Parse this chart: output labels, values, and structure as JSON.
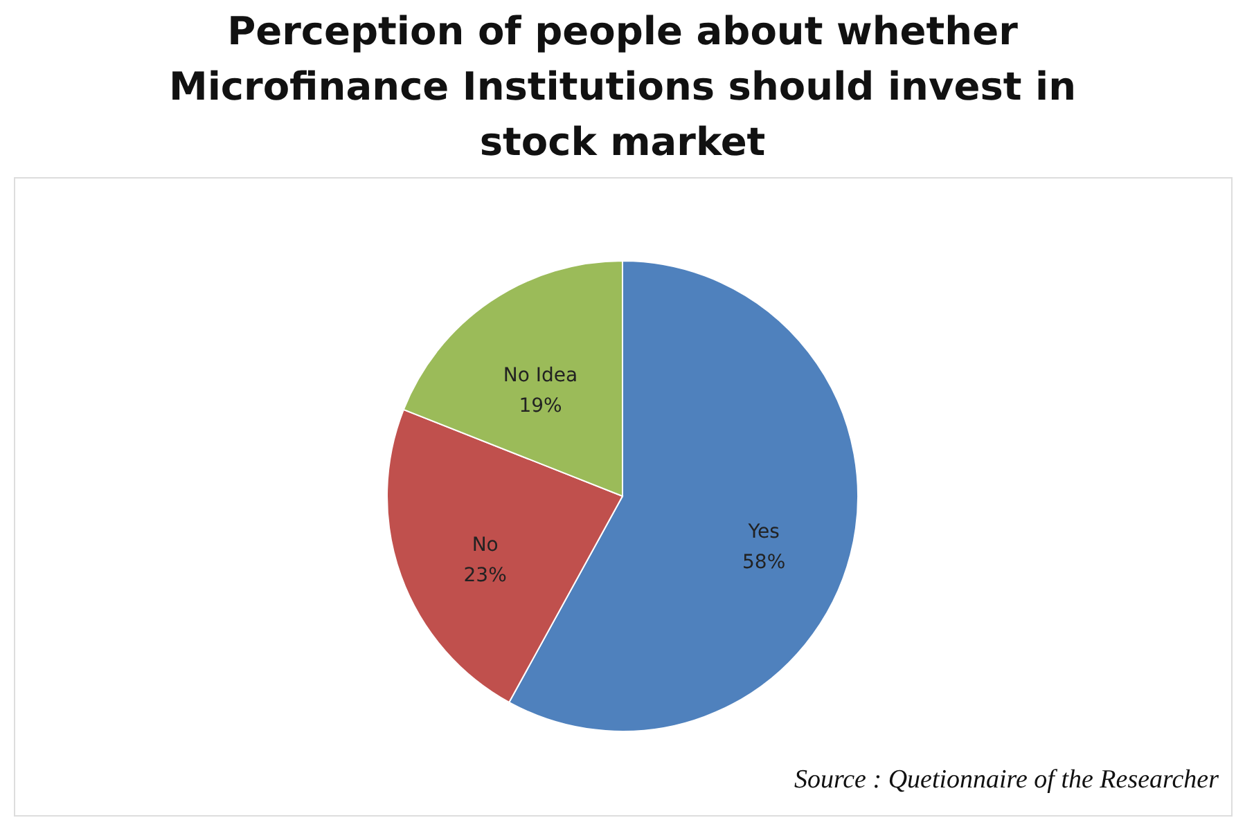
{
  "chart_data": {
    "type": "pie",
    "title": "Perception of people about whether Microfinance Institutions should invest in stock market",
    "categories": [
      "Yes",
      "No",
      "No Idea"
    ],
    "values": [
      58,
      23,
      19
    ],
    "colors": [
      "#4f81bd",
      "#c0504d",
      "#9bbb59"
    ],
    "value_labels": [
      "58%",
      "23%",
      "19%"
    ],
    "legend": false,
    "annotations": [
      "Source : Quetionnaire of the Researcher"
    ]
  }
}
